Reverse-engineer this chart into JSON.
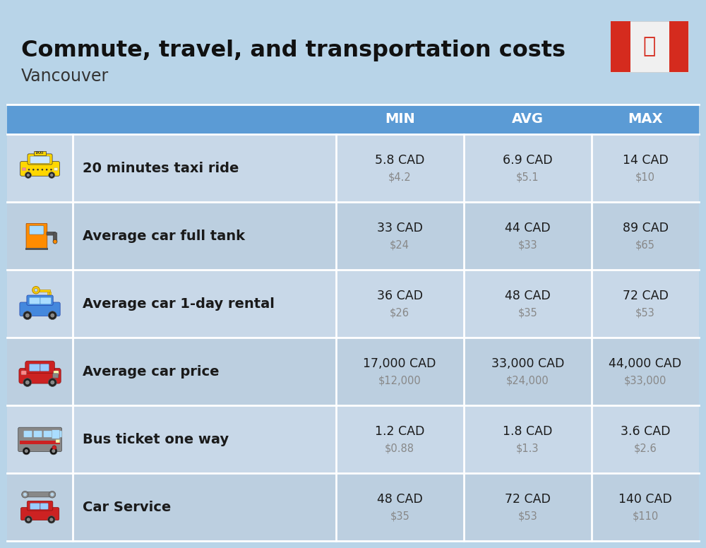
{
  "title": "Commute, travel, and transportation costs",
  "subtitle": "Vancouver",
  "bg_color": "#b8d4e8",
  "header_bg": "#5b9bd5",
  "header_text_color": "#ffffff",
  "row_bg_even": "#c8d8e8",
  "row_bg_odd": "#bccfe0",
  "col_header_labels": [
    "MIN",
    "AVG",
    "MAX"
  ],
  "rows": [
    {
      "label": "20 minutes taxi ride",
      "min_cad": "5.8 CAD",
      "min_usd": "$4.2",
      "avg_cad": "6.9 CAD",
      "avg_usd": "$5.1",
      "max_cad": "14 CAD",
      "max_usd": "$10"
    },
    {
      "label": "Average car full tank",
      "min_cad": "33 CAD",
      "min_usd": "$24",
      "avg_cad": "44 CAD",
      "avg_usd": "$33",
      "max_cad": "89 CAD",
      "max_usd": "$65"
    },
    {
      "label": "Average car 1-day rental",
      "min_cad": "36 CAD",
      "min_usd": "$26",
      "avg_cad": "48 CAD",
      "avg_usd": "$35",
      "max_cad": "72 CAD",
      "max_usd": "$53"
    },
    {
      "label": "Average car price",
      "min_cad": "17,000 CAD",
      "min_usd": "$12,000",
      "avg_cad": "33,000 CAD",
      "avg_usd": "$24,000",
      "max_cad": "44,000 CAD",
      "max_usd": "$33,000"
    },
    {
      "label": "Bus ticket one way",
      "min_cad": "1.2 CAD",
      "min_usd": "$0.88",
      "avg_cad": "1.8 CAD",
      "avg_usd": "$1.3",
      "max_cad": "3.6 CAD",
      "max_usd": "$2.6"
    },
    {
      "label": "Car Service",
      "min_cad": "48 CAD",
      "min_usd": "$35",
      "avg_cad": "72 CAD",
      "avg_usd": "$53",
      "max_cad": "140 CAD",
      "max_usd": "$110"
    }
  ],
  "text_color_main": "#1a1a1a",
  "text_color_usd": "#888888",
  "divider_color": "#ffffff",
  "flag_red": "#d52b1e",
  "flag_white": "#f5f5f5"
}
